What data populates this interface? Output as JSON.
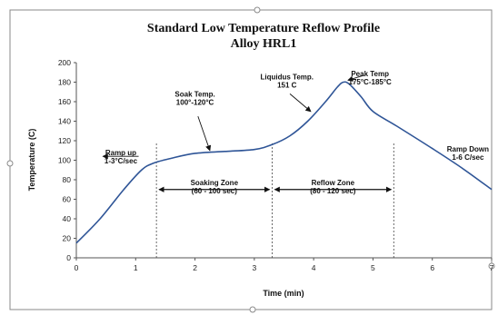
{
  "chart_data": {
    "type": "line",
    "title": "Standard Low Temperature Reflow Profile",
    "subtitle": "Alloy HRL1",
    "xlabel": "Time (min)",
    "ylabel": "Temperature (C)",
    "xlim": [
      0,
      7
    ],
    "ylim": [
      0,
      200
    ],
    "xticks": [
      "0",
      "1",
      "2",
      "3",
      "4",
      "5",
      "6",
      "7"
    ],
    "yticks": [
      "0",
      "20",
      "40",
      "60",
      "80",
      "100",
      "120",
      "140",
      "160",
      "180",
      "200"
    ],
    "grid": false,
    "colors": {
      "line": "#2f5597"
    },
    "series": [
      {
        "x": [
          0,
          0.4,
          0.8,
          1.1,
          1.3,
          1.6,
          2.0,
          2.5,
          3.0,
          3.3,
          3.6,
          3.9,
          4.2,
          4.4,
          4.5,
          4.6,
          4.8,
          5.0,
          5.4,
          6.0,
          6.5,
          7.0
        ],
        "y": [
          15,
          40,
          70,
          90,
          97,
          102,
          107,
          109,
          111,
          116,
          125,
          140,
          160,
          175,
          180,
          178,
          165,
          150,
          135,
          112,
          92,
          70
        ]
      }
    ],
    "vlines": [
      1.35,
      3.3,
      5.35
    ],
    "zones": [
      {
        "label": [
          "Soaking Zone",
          "(60 - 100 sec)"
        ],
        "x_start": 1.35,
        "x_end": 3.3,
        "y": 70
      },
      {
        "label": [
          "Reflow Zone",
          "(80 - 120 sec)"
        ],
        "x_start": 3.3,
        "x_end": 5.35,
        "y": 70
      }
    ],
    "annotations": [
      {
        "lines": [
          "Ramp up",
          "1-3°C/sec"
        ],
        "x": 0.75,
        "y": 105,
        "arrow": {
          "from": [
            1.05,
            104
          ],
          "to": [
            0.45,
            104
          ]
        }
      },
      {
        "lines": [
          "Soak Temp.",
          "100°-120°C"
        ],
        "x": 2.0,
        "y": 165,
        "arrow": {
          "from": [
            2.05,
            145
          ],
          "to": [
            2.25,
            110
          ]
        }
      },
      {
        "lines": [
          "Liquidus Temp.",
          "151 C"
        ],
        "x": 3.55,
        "y": 183,
        "arrow": {
          "from": [
            3.6,
            168
          ],
          "to": [
            3.95,
            150
          ]
        }
      },
      {
        "lines": [
          "Peak Temp",
          "175°C-185°C"
        ],
        "x": 4.95,
        "y": 186,
        "arrow": {
          "from": [
            4.85,
            187
          ],
          "to": [
            4.58,
            182
          ]
        }
      },
      {
        "lines": [
          "Ramp Down",
          "1-6 C/sec"
        ],
        "x": 6.6,
        "y": 109
      }
    ]
  }
}
